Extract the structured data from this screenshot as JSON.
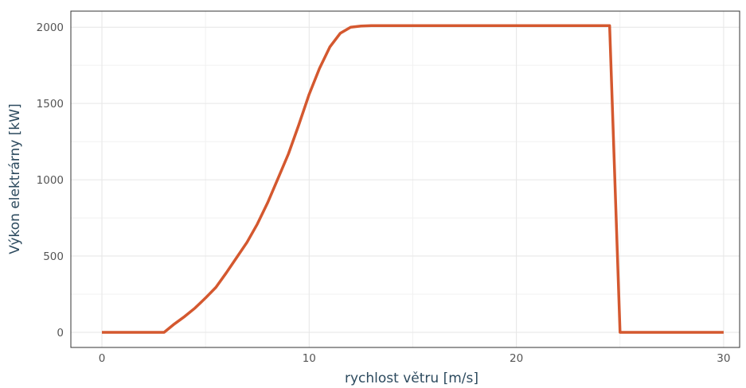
{
  "chart_data": {
    "type": "line",
    "xlabel": "rychlost větru [m/s]",
    "ylabel": "Výkon elektrárny [kW]",
    "xlim": [
      -1.5,
      31
    ],
    "ylim": [
      -100,
      2110
    ],
    "x_ticks": [
      0,
      10,
      20,
      30
    ],
    "y_ticks": [
      0,
      500,
      1000,
      1500,
      2000
    ],
    "grid": true,
    "line_color": "#d4582f",
    "series": [
      {
        "x": [
          0,
          1,
          2,
          3,
          3.5,
          4,
          4.5,
          5,
          5.5,
          6,
          6.5,
          7,
          7.5,
          8,
          8.5,
          9,
          9.5,
          10,
          10.5,
          11,
          11.5,
          12,
          12.5,
          13,
          14,
          15,
          20,
          24.5,
          25,
          25.5,
          30
        ],
        "y": [
          0,
          0,
          0,
          0,
          55,
          105,
          160,
          225,
          295,
          390,
          490,
          590,
          710,
          850,
          1010,
          1170,
          1360,
          1560,
          1730,
          1870,
          1960,
          2000,
          2008,
          2010,
          2010,
          2010,
          2010,
          2010,
          0,
          0,
          0
        ]
      }
    ]
  }
}
